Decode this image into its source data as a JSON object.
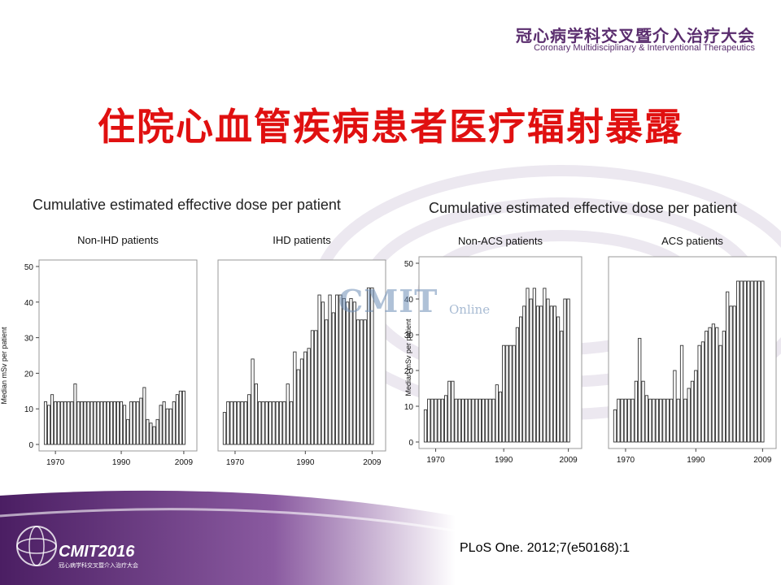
{
  "header": {
    "cn_title": "冠心病学科交叉暨介入治疗大会",
    "en_title": "Coronary Multidisciplinary & Interventional Therapeutics"
  },
  "slide_title": "住院心血管疾病患者医疗辐射暴露",
  "watermark": {
    "text": "CMIT",
    "sub": "Online"
  },
  "logo": {
    "text": "CMIT2016",
    "sub": "冠心病学科交叉暨介入治疗大会"
  },
  "citation": "PLoS One. 2012;7(e50168):1",
  "colors": {
    "title": "#e01010",
    "brand": "#5a2d6e",
    "bar_fill": "#ffffff",
    "bar_stroke": "#333333"
  },
  "groups": [
    {
      "title": "Cumulative estimated effective dose per patient"
    },
    {
      "title": "Cumulative estimated effective dose per patient"
    }
  ],
  "chart_data": [
    {
      "type": "bar",
      "title": "Non-IHD patients",
      "ylabel": "Median mSv per patient",
      "ylim": [
        0,
        50
      ],
      "yticks": [
        0,
        10,
        20,
        30,
        40,
        50
      ],
      "xticks": [
        "1970",
        "1990",
        "2009"
      ],
      "x_range": [
        1967,
        2011
      ],
      "series": [
        {
          "x": [
            1967,
            1968,
            1969,
            1970,
            1971,
            1972,
            1973,
            1974,
            1975,
            1976,
            1977,
            1978,
            1979,
            1980,
            1981,
            1982,
            1983,
            1984,
            1985,
            1986,
            1987,
            1988,
            1989,
            1990,
            1991,
            1992,
            1993,
            1994,
            1995,
            1996,
            1997,
            1998,
            1999,
            2000,
            2001,
            2002,
            2003,
            2004,
            2005,
            2006,
            2007,
            2008,
            2009
          ],
          "values": [
            12,
            11,
            14,
            12,
            12,
            12,
            12,
            12,
            12,
            17,
            12,
            12,
            12,
            12,
            12,
            12,
            12,
            12,
            12,
            12,
            12,
            12,
            12,
            12,
            11,
            7,
            12,
            12,
            12,
            13,
            16,
            7,
            6,
            5,
            7,
            11,
            12,
            10,
            10,
            12,
            14,
            15,
            15
          ]
        }
      ]
    },
    {
      "type": "bar",
      "title": "IHD patients",
      "ylabel": "",
      "ylim": [
        0,
        50
      ],
      "xticks": [
        "1970",
        "1990",
        "2009"
      ],
      "x_range": [
        1967,
        2011
      ],
      "series": [
        {
          "x": [
            1967,
            1968,
            1969,
            1970,
            1971,
            1972,
            1973,
            1974,
            1975,
            1976,
            1977,
            1978,
            1979,
            1980,
            1981,
            1982,
            1983,
            1984,
            1985,
            1986,
            1987,
            1988,
            1989,
            1990,
            1991,
            1992,
            1993,
            1994,
            1995,
            1996,
            1997,
            1998,
            1999,
            2000,
            2001,
            2002,
            2003,
            2004,
            2005,
            2006,
            2007,
            2008,
            2009
          ],
          "values": [
            9,
            12,
            12,
            12,
            12,
            12,
            12,
            14,
            24,
            17,
            12,
            12,
            12,
            12,
            12,
            12,
            12,
            12,
            17,
            12,
            26,
            21,
            24,
            26,
            27,
            32,
            32,
            42,
            40,
            35,
            42,
            37,
            42,
            42,
            41,
            40,
            41,
            40,
            35,
            35,
            35,
            44,
            44
          ]
        }
      ]
    },
    {
      "type": "bar",
      "title": "Non-ACS patients",
      "ylabel": "Median mSv per patient",
      "ylim": [
        0,
        50
      ],
      "yticks": [
        0,
        10,
        20,
        30,
        40,
        50
      ],
      "xticks": [
        "1970",
        "1990",
        "2009"
      ],
      "x_range": [
        1967,
        2011
      ],
      "series": [
        {
          "x": [
            1967,
            1968,
            1969,
            1970,
            1971,
            1972,
            1973,
            1974,
            1975,
            1976,
            1977,
            1978,
            1979,
            1980,
            1981,
            1982,
            1983,
            1984,
            1985,
            1986,
            1987,
            1988,
            1989,
            1990,
            1991,
            1992,
            1993,
            1994,
            1995,
            1996,
            1997,
            1998,
            1999,
            2000,
            2001,
            2002,
            2003,
            2004,
            2005,
            2006,
            2007,
            2008,
            2009
          ],
          "values": [
            9,
            12,
            12,
            12,
            12,
            12,
            13,
            17,
            17,
            12,
            12,
            12,
            12,
            12,
            12,
            12,
            12,
            12,
            12,
            12,
            12,
            16,
            14,
            27,
            27,
            27,
            27,
            32,
            35,
            38,
            43,
            40,
            43,
            38,
            38,
            43,
            40,
            38,
            38,
            35,
            31,
            40,
            40
          ]
        }
      ]
    },
    {
      "type": "bar",
      "title": "ACS patients",
      "ylabel": "",
      "ylim": [
        0,
        50
      ],
      "xticks": [
        "1970",
        "1990",
        "2009"
      ],
      "x_range": [
        1967,
        2011
      ],
      "series": [
        {
          "x": [
            1967,
            1968,
            1969,
            1970,
            1971,
            1972,
            1973,
            1974,
            1975,
            1976,
            1977,
            1978,
            1979,
            1980,
            1981,
            1982,
            1983,
            1984,
            1985,
            1986,
            1987,
            1988,
            1989,
            1990,
            1991,
            1992,
            1993,
            1994,
            1995,
            1996,
            1997,
            1998,
            1999,
            2000,
            2001,
            2002,
            2003,
            2004,
            2005,
            2006,
            2007,
            2008,
            2009
          ],
          "values": [
            9,
            12,
            12,
            12,
            12,
            12,
            17,
            29,
            17,
            13,
            12,
            12,
            12,
            12,
            12,
            12,
            12,
            20,
            12,
            27,
            12,
            15,
            17,
            20,
            27,
            28,
            31,
            32,
            33,
            32,
            27,
            31,
            42,
            38,
            38,
            45,
            45,
            45,
            45,
            45,
            45,
            45,
            45
          ]
        }
      ]
    }
  ]
}
